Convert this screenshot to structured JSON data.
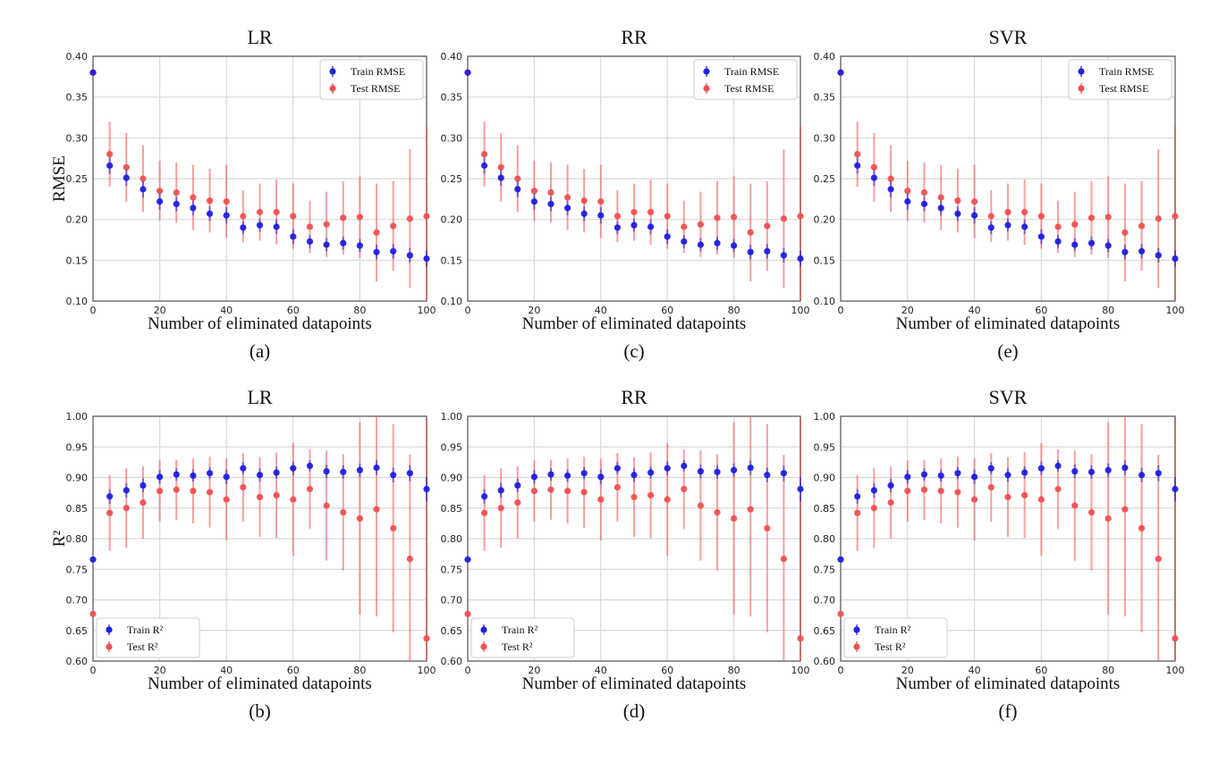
{
  "chart_data": [
    {
      "panel": "(a)",
      "type": "scatter",
      "title": "LR",
      "xlabel": "Number of eliminated datapoints",
      "ylabel": "RMSE",
      "xlim": [
        0,
        100
      ],
      "ylim": [
        0.1,
        0.4
      ],
      "xticks": [
        0,
        20,
        40,
        60,
        80,
        100
      ],
      "yticks": [
        "0.10",
        "0.15",
        "0.20",
        "0.25",
        "0.30",
        "0.35",
        "0.40"
      ],
      "grid": true,
      "legend": "top-right",
      "x": [
        0,
        5,
        10,
        15,
        20,
        25,
        30,
        35,
        40,
        45,
        50,
        55,
        60,
        65,
        70,
        75,
        80,
        85,
        90,
        95,
        100
      ],
      "series": [
        {
          "name": "Train RMSE",
          "color": "#1f1fe0",
          "values": [
            0.38,
            0.266,
            0.251,
            0.237,
            0.222,
            0.219,
            0.214,
            0.207,
            0.205,
            0.19,
            0.193,
            0.191,
            0.179,
            0.173,
            0.169,
            0.171,
            0.168,
            0.16,
            0.161,
            0.156,
            0.152
          ],
          "errors": [
            0,
            0.01,
            0.01,
            0.01,
            0.01,
            0.009,
            0.009,
            0.009,
            0.01,
            0.008,
            0.008,
            0.009,
            0.009,
            0.008,
            0.008,
            0.008,
            0.008,
            0.009,
            0.009,
            0.009,
            0.01
          ]
        },
        {
          "name": "Test RMSE",
          "color": "#f05050",
          "values": [
            0.38,
            0.28,
            0.264,
            0.25,
            0.235,
            0.233,
            0.227,
            0.223,
            0.222,
            0.204,
            0.209,
            0.209,
            0.204,
            0.191,
            0.194,
            0.202,
            0.203,
            0.184,
            0.192,
            0.201,
            0.204
          ],
          "errors": [
            0,
            0.04,
            0.042,
            0.041,
            0.037,
            0.037,
            0.04,
            0.039,
            0.045,
            0.032,
            0.035,
            0.04,
            0.04,
            0.032,
            0.04,
            0.045,
            0.05,
            0.06,
            0.055,
            0.085,
            0.11
          ]
        }
      ]
    },
    {
      "panel": "(c)",
      "type": "scatter",
      "title": "RR",
      "xlabel": "Number of eliminated datapoints",
      "ylabel": "",
      "xlim": [
        0,
        100
      ],
      "ylim": [
        0.1,
        0.4
      ],
      "xticks": [
        0,
        20,
        40,
        60,
        80,
        100
      ],
      "yticks": [
        "0.10",
        "0.15",
        "0.20",
        "0.25",
        "0.30",
        "0.35",
        "0.40"
      ],
      "grid": true,
      "legend": "top-right",
      "x": [
        0,
        5,
        10,
        15,
        20,
        25,
        30,
        35,
        40,
        45,
        50,
        55,
        60,
        65,
        70,
        75,
        80,
        85,
        90,
        95,
        100
      ],
      "series": [
        {
          "name": "Train RMSE",
          "color": "#1f1fe0",
          "values": [
            0.38,
            0.266,
            0.251,
            0.237,
            0.222,
            0.219,
            0.214,
            0.207,
            0.205,
            0.19,
            0.193,
            0.191,
            0.179,
            0.173,
            0.169,
            0.171,
            0.168,
            0.16,
            0.161,
            0.156,
            0.152
          ],
          "errors": [
            0,
            0.01,
            0.01,
            0.01,
            0.01,
            0.009,
            0.009,
            0.009,
            0.01,
            0.008,
            0.008,
            0.009,
            0.009,
            0.008,
            0.008,
            0.008,
            0.008,
            0.009,
            0.009,
            0.009,
            0.01
          ]
        },
        {
          "name": "Test RMSE",
          "color": "#f05050",
          "values": [
            0.38,
            0.28,
            0.264,
            0.25,
            0.235,
            0.233,
            0.227,
            0.223,
            0.222,
            0.204,
            0.209,
            0.209,
            0.204,
            0.191,
            0.194,
            0.202,
            0.203,
            0.184,
            0.192,
            0.201,
            0.204
          ],
          "errors": [
            0,
            0.04,
            0.042,
            0.041,
            0.037,
            0.037,
            0.04,
            0.039,
            0.045,
            0.032,
            0.035,
            0.04,
            0.04,
            0.032,
            0.04,
            0.045,
            0.05,
            0.06,
            0.055,
            0.085,
            0.11
          ]
        }
      ]
    },
    {
      "panel": "(e)",
      "type": "scatter",
      "title": "SVR",
      "xlabel": "Number of eliminated datapoints",
      "ylabel": "",
      "xlim": [
        0,
        100
      ],
      "ylim": [
        0.1,
        0.4
      ],
      "xticks": [
        0,
        20,
        40,
        60,
        80,
        100
      ],
      "yticks": [
        "0.10",
        "0.15",
        "0.20",
        "0.25",
        "0.30",
        "0.35",
        "0.40"
      ],
      "grid": true,
      "legend": "top-right",
      "x": [
        0,
        5,
        10,
        15,
        20,
        25,
        30,
        35,
        40,
        45,
        50,
        55,
        60,
        65,
        70,
        75,
        80,
        85,
        90,
        95,
        100
      ],
      "series": [
        {
          "name": "Train RMSE",
          "color": "#1f1fe0",
          "values": [
            0.38,
            0.266,
            0.251,
            0.237,
            0.222,
            0.219,
            0.214,
            0.207,
            0.205,
            0.19,
            0.193,
            0.191,
            0.179,
            0.173,
            0.169,
            0.171,
            0.168,
            0.16,
            0.161,
            0.156,
            0.152
          ],
          "errors": [
            0,
            0.01,
            0.01,
            0.01,
            0.01,
            0.009,
            0.009,
            0.009,
            0.01,
            0.008,
            0.008,
            0.009,
            0.009,
            0.008,
            0.008,
            0.008,
            0.008,
            0.009,
            0.009,
            0.009,
            0.01
          ]
        },
        {
          "name": "Test RMSE",
          "color": "#f05050",
          "values": [
            0.38,
            0.28,
            0.264,
            0.25,
            0.235,
            0.233,
            0.227,
            0.223,
            0.222,
            0.204,
            0.209,
            0.209,
            0.204,
            0.191,
            0.194,
            0.202,
            0.203,
            0.184,
            0.192,
            0.201,
            0.204
          ],
          "errors": [
            0,
            0.04,
            0.042,
            0.041,
            0.037,
            0.037,
            0.04,
            0.039,
            0.045,
            0.032,
            0.035,
            0.04,
            0.04,
            0.032,
            0.04,
            0.045,
            0.05,
            0.06,
            0.055,
            0.085,
            0.11
          ]
        }
      ]
    },
    {
      "panel": "(b)",
      "type": "scatter",
      "title": "LR",
      "xlabel": "Number of eliminated datapoints",
      "ylabel": "R²",
      "xlim": [
        0,
        100
      ],
      "ylim": [
        0.6,
        1.0
      ],
      "xticks": [
        0,
        20,
        40,
        60,
        80,
        100
      ],
      "yticks": [
        "0.60",
        "0.65",
        "0.70",
        "0.75",
        "0.80",
        "0.85",
        "0.90",
        "0.95",
        "1.00"
      ],
      "grid": true,
      "legend": "bottom-left",
      "x": [
        0,
        5,
        10,
        15,
        20,
        25,
        30,
        35,
        40,
        45,
        50,
        55,
        60,
        65,
        70,
        75,
        80,
        85,
        90,
        95,
        100
      ],
      "series": [
        {
          "name": "Train R²",
          "color": "#1f1fe0",
          "values": [
            0.766,
            0.869,
            0.879,
            0.887,
            0.901,
            0.905,
            0.903,
            0.907,
            0.901,
            0.915,
            0.904,
            0.908,
            0.915,
            0.919,
            0.91,
            0.909,
            0.912,
            0.916,
            0.904,
            0.907,
            0.881
          ],
          "errors": [
            0,
            0.012,
            0.012,
            0.011,
            0.011,
            0.01,
            0.01,
            0.01,
            0.012,
            0.01,
            0.011,
            0.01,
            0.011,
            0.009,
            0.011,
            0.011,
            0.011,
            0.012,
            0.012,
            0.013,
            0.02
          ]
        },
        {
          "name": "Test R²",
          "color": "#f05050",
          "values": [
            0.677,
            0.842,
            0.85,
            0.859,
            0.878,
            0.88,
            0.878,
            0.876,
            0.864,
            0.884,
            0.868,
            0.871,
            0.864,
            0.881,
            0.854,
            0.843,
            0.833,
            0.848,
            0.817,
            0.767,
            0.637
          ],
          "errors": [
            0,
            0.062,
            0.065,
            0.059,
            0.05,
            0.049,
            0.053,
            0.058,
            0.067,
            0.056,
            0.065,
            0.07,
            0.092,
            0.065,
            0.09,
            0.095,
            0.157,
            0.175,
            0.17,
            0.17,
            0.36
          ]
        }
      ]
    },
    {
      "panel": "(d)",
      "type": "scatter",
      "title": "RR",
      "xlabel": "Number of eliminated datapoints",
      "ylabel": "",
      "xlim": [
        0,
        100
      ],
      "ylim": [
        0.6,
        1.0
      ],
      "xticks": [
        0,
        20,
        40,
        60,
        80,
        100
      ],
      "yticks": [
        "0.60",
        "0.65",
        "0.70",
        "0.75",
        "0.80",
        "0.85",
        "0.90",
        "0.95",
        "1.00"
      ],
      "grid": true,
      "legend": "bottom-left",
      "x": [
        0,
        5,
        10,
        15,
        20,
        25,
        30,
        35,
        40,
        45,
        50,
        55,
        60,
        65,
        70,
        75,
        80,
        85,
        90,
        95,
        100
      ],
      "series": [
        {
          "name": "Train R²",
          "color": "#1f1fe0",
          "values": [
            0.766,
            0.869,
            0.879,
            0.887,
            0.901,
            0.905,
            0.903,
            0.907,
            0.901,
            0.915,
            0.904,
            0.908,
            0.915,
            0.919,
            0.91,
            0.909,
            0.912,
            0.916,
            0.904,
            0.907,
            0.881
          ],
          "errors": [
            0,
            0.012,
            0.012,
            0.011,
            0.011,
            0.01,
            0.01,
            0.01,
            0.012,
            0.01,
            0.011,
            0.01,
            0.011,
            0.009,
            0.011,
            0.011,
            0.011,
            0.012,
            0.012,
            0.013,
            0.02
          ]
        },
        {
          "name": "Test R²",
          "color": "#f05050",
          "values": [
            0.677,
            0.842,
            0.85,
            0.859,
            0.878,
            0.88,
            0.878,
            0.876,
            0.864,
            0.884,
            0.868,
            0.871,
            0.864,
            0.881,
            0.854,
            0.843,
            0.833,
            0.848,
            0.817,
            0.767,
            0.637
          ],
          "errors": [
            0,
            0.062,
            0.065,
            0.059,
            0.05,
            0.049,
            0.053,
            0.058,
            0.067,
            0.056,
            0.065,
            0.07,
            0.092,
            0.065,
            0.09,
            0.095,
            0.157,
            0.175,
            0.17,
            0.17,
            0.36
          ]
        }
      ]
    },
    {
      "panel": "(f)",
      "type": "scatter",
      "title": "SVR",
      "xlabel": "Number of eliminated datapoints",
      "ylabel": "",
      "xlim": [
        0,
        100
      ],
      "ylim": [
        0.6,
        1.0
      ],
      "xticks": [
        0,
        20,
        40,
        60,
        80,
        100
      ],
      "yticks": [
        "0.60",
        "0.65",
        "0.70",
        "0.75",
        "0.80",
        "0.85",
        "0.90",
        "0.95",
        "1.00"
      ],
      "grid": true,
      "legend": "bottom-left",
      "x": [
        0,
        5,
        10,
        15,
        20,
        25,
        30,
        35,
        40,
        45,
        50,
        55,
        60,
        65,
        70,
        75,
        80,
        85,
        90,
        95,
        100
      ],
      "series": [
        {
          "name": "Train R²",
          "color": "#1f1fe0",
          "values": [
            0.766,
            0.869,
            0.879,
            0.887,
            0.901,
            0.905,
            0.903,
            0.907,
            0.901,
            0.915,
            0.904,
            0.908,
            0.915,
            0.919,
            0.91,
            0.909,
            0.912,
            0.916,
            0.904,
            0.907,
            0.881
          ],
          "errors": [
            0,
            0.012,
            0.012,
            0.011,
            0.011,
            0.01,
            0.01,
            0.01,
            0.012,
            0.01,
            0.011,
            0.01,
            0.011,
            0.009,
            0.011,
            0.011,
            0.011,
            0.012,
            0.012,
            0.013,
            0.02
          ]
        },
        {
          "name": "Test R²",
          "color": "#f05050",
          "values": [
            0.677,
            0.842,
            0.85,
            0.859,
            0.878,
            0.88,
            0.878,
            0.876,
            0.864,
            0.884,
            0.868,
            0.871,
            0.864,
            0.881,
            0.854,
            0.843,
            0.833,
            0.848,
            0.817,
            0.767,
            0.637
          ],
          "errors": [
            0,
            0.062,
            0.065,
            0.059,
            0.05,
            0.049,
            0.053,
            0.058,
            0.067,
            0.056,
            0.065,
            0.07,
            0.092,
            0.065,
            0.09,
            0.095,
            0.157,
            0.175,
            0.17,
            0.17,
            0.36
          ]
        }
      ]
    }
  ]
}
